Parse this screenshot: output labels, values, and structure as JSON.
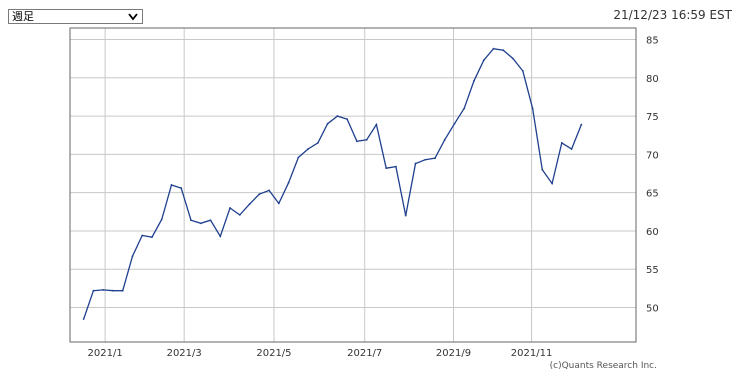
{
  "controls": {
    "period_select": {
      "selected": "週足"
    }
  },
  "header": {
    "timestamp": "21/12/23 16:59 EST"
  },
  "footer": {
    "credit": "(c)Quants Research Inc."
  },
  "colors": {
    "line": "#1f3f8f",
    "grid": "#c8c8c8",
    "axis": "#666666"
  },
  "chart_data": {
    "type": "line",
    "title": "",
    "xlabel": "",
    "ylabel": "",
    "ylim": [
      45.5,
      86.5
    ],
    "y_ticks": [
      50,
      55,
      60,
      65,
      70,
      75,
      80,
      85
    ],
    "x_ticks": [
      "2021/1",
      "2021/3",
      "2021/5",
      "2021/7",
      "2021/9",
      "2021/11"
    ],
    "x_tick_positions": [
      2.2,
      10.3,
      19.5,
      28.8,
      37.9,
      45.9
    ],
    "grid": true,
    "series": [
      {
        "name": "",
        "x": [
          0,
          1,
          2,
          3,
          4,
          5,
          6,
          7,
          8,
          9,
          10,
          11,
          12,
          13,
          14,
          15,
          16,
          17,
          18,
          19,
          20,
          21,
          22,
          23,
          24,
          25,
          26,
          27,
          28,
          29,
          30,
          31,
          32,
          33,
          34,
          35,
          36,
          37,
          38,
          39,
          40,
          41,
          42,
          43,
          44,
          45,
          46,
          47,
          48,
          49,
          50,
          51
        ],
        "values": [
          48.5,
          52.2,
          52.3,
          52.2,
          52.2,
          56.7,
          59.4,
          59.2,
          61.5,
          66.0,
          65.6,
          61.4,
          61.0,
          61.4,
          59.3,
          63.0,
          62.1,
          63.5,
          64.8,
          65.3,
          63.6,
          66.3,
          69.6,
          70.7,
          71.5,
          74.0,
          75.0,
          74.6,
          71.7,
          71.9,
          73.9,
          68.2,
          68.4,
          62.0,
          68.8,
          69.3,
          69.5,
          71.9,
          74.0,
          76.0,
          79.6,
          82.3,
          83.8,
          83.6,
          82.5,
          80.9,
          76.0,
          68.0,
          66.2,
          71.5,
          70.7,
          73.9
        ]
      }
    ]
  }
}
